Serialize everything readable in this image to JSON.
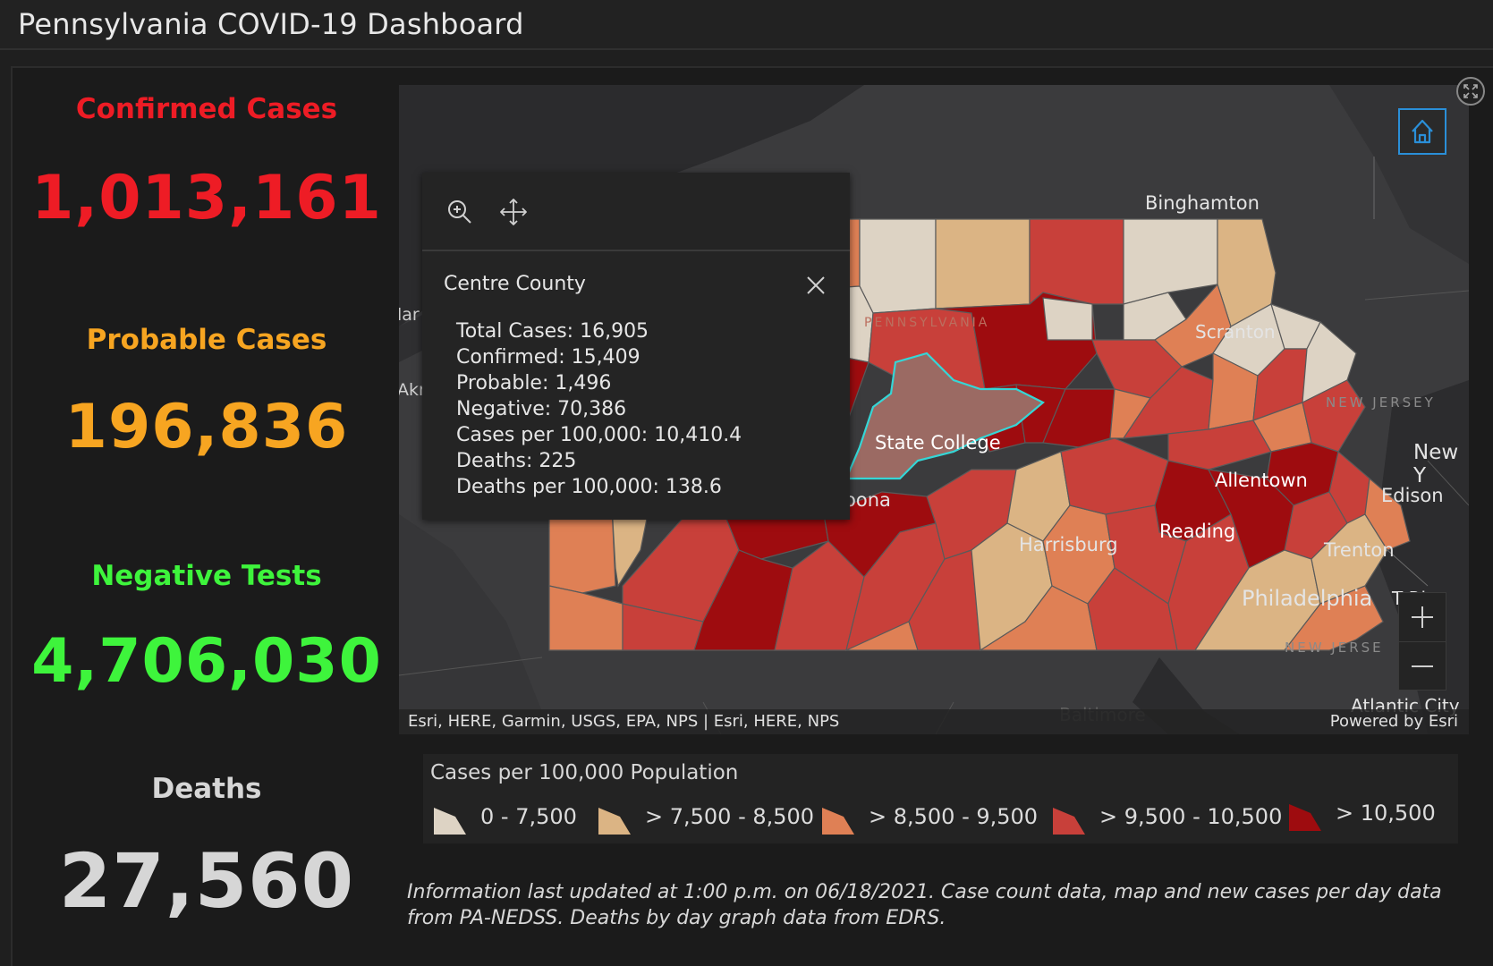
{
  "header": {
    "title": "Pennsylvania COVID-19 Dashboard"
  },
  "stats": {
    "confirmed": {
      "label": "Confirmed Cases",
      "value": "1,013,161",
      "color": "#ee1c25"
    },
    "probable": {
      "label": "Probable Cases",
      "value": "196,836",
      "color": "#f7a521"
    },
    "negative": {
      "label": "Negative Tests",
      "value": "4,706,030",
      "color": "#3ef43c"
    },
    "deaths": {
      "label": "Deaths",
      "value": "27,560",
      "color": "#d6d6d6"
    }
  },
  "map": {
    "place_labels": {
      "binghamton": "Binghamton",
      "scranton": "Scranton",
      "state_college": "State College",
      "allentown": "Allentown",
      "reading": "Reading",
      "harrisburg": "Harrisburg",
      "trenton": "Trenton",
      "philadelphia": "Philadelphia",
      "new_york": "New Y",
      "edison": "Edison",
      "altoona": "oona",
      "baltimore": "Baltimore",
      "atlantic_city": "Atlantic City",
      "toms_river": "T Riv",
      "akron": "Akr",
      "cleveland": "lar",
      "new_jersey_1": "NEW JERSEY",
      "new_jersey_2": "NEW JERSE",
      "pennsylvania": "PENNSYLVANIA"
    },
    "attribution": "Esri, HERE, Garmin, USGS, EPA, NPS | Esri, HERE, NPS",
    "powered_by": "Powered by Esri",
    "buttons": {
      "zoom_in": "+",
      "zoom_out": "—"
    }
  },
  "popup": {
    "title": "Centre County",
    "lines": [
      "Total Cases: 16,905",
      "Confirmed: 15,409",
      "Probable: 1,496",
      "Negative: 70,386",
      "Cases per 100,000: 10,410.4",
      "Deaths: 225",
      "Deaths per 100,000: 138.6"
    ]
  },
  "legend": {
    "title": "Cases per 100,000 Population",
    "items": [
      {
        "label": "0 - 7,500",
        "color": "#ddd3c4"
      },
      {
        "label": "> 7,500 - 8,500",
        "color": "#dbb484"
      },
      {
        "label": "> 8,500 - 9,500",
        "color": "#df8055"
      },
      {
        "label": "> 9,500 - 10,500",
        "color": "#c8403a"
      },
      {
        "label": "> 10,500",
        "color": "#9e0c0f"
      }
    ]
  },
  "footnote": "Information last updated at 1:00 p.m. on 06/18/2021. Case count data, map and new cases per day data from PA-NEDSS.  Deaths by day graph data from EDRS."
}
